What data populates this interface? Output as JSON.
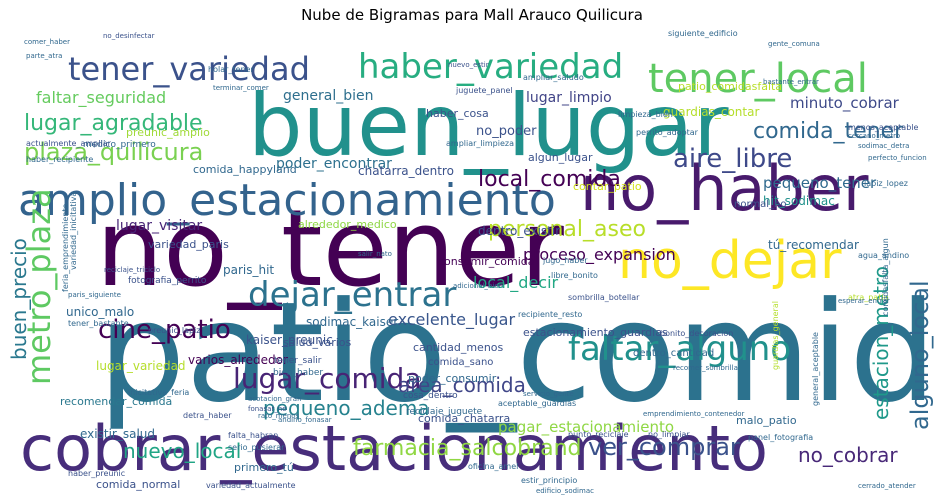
{
  "title": "Nube de Bigramas para Mall Arauco Quilicura",
  "words": [
    {
      "text": "patio_comida",
      "color": "#2c728e"
    },
    {
      "text": "buen_lugar",
      "color": "#21918c"
    },
    {
      "text": "no_tener",
      "color": "#440154"
    },
    {
      "text": "cobrar_estacionamiento",
      "color": "#472d7b"
    },
    {
      "text": "no_haber",
      "color": "#481a6c"
    },
    {
      "text": "no_dejar",
      "color": "#fde725"
    },
    {
      "text": "amplio_estacionamiento",
      "color": "#33638d"
    },
    {
      "text": "tener_local",
      "color": "#5ec962"
    },
    {
      "text": "haber_variedad",
      "color": "#27ad81"
    },
    {
      "text": "tener_variedad",
      "color": "#3b528b"
    },
    {
      "text": "dejar_entrar",
      "color": "#2c728e"
    },
    {
      "text": "faltar_alguno",
      "color": "#21918c"
    },
    {
      "text": "lugar_comida",
      "color": "#482475"
    },
    {
      "text": "metro_plaza",
      "color": "#5ec962"
    },
    {
      "text": "cine_patio",
      "color": "#440154"
    },
    {
      "text": "plaza_quilicura",
      "color": "#7ad151"
    },
    {
      "text": "lugar_agradable",
      "color": "#35b779"
    },
    {
      "text": "aire_libre",
      "color": "#3e4989"
    },
    {
      "text": "comida_tener",
      "color": "#31688e"
    },
    {
      "text": "alguno_local",
      "color": "#31688e"
    },
    {
      "text": "local_comida",
      "color": "#440154"
    },
    {
      "text": "personal_aseo",
      "color": "#b8de29"
    },
    {
      "text": "ver_comprar",
      "color": "#3b528b"
    },
    {
      "text": "farmacia_salcobrand",
      "color": "#90d743"
    },
    {
      "text": "nuevo_local",
      "color": "#21a585"
    },
    {
      "text": "pequeno_adema",
      "color": "#26828e"
    },
    {
      "text": "area_comida",
      "color": "#404688"
    },
    {
      "text": "buen_precio",
      "color": "#2a788e"
    },
    {
      "text": "estacion_metro",
      "color": "#1f998a"
    },
    {
      "text": "no_cobrar",
      "color": "#482878"
    },
    {
      "text": "faltar_seguridad",
      "color": "#65cb5e"
    },
    {
      "text": "proceso_expansion",
      "color": "#440154"
    },
    {
      "text": "local_decir",
      "color": "#22a884"
    },
    {
      "text": "excelente_lugar",
      "color": "#39568c"
    },
    {
      "text": "pagar_estacionamiento",
      "color": "#8fd744"
    },
    {
      "text": "general_bien",
      "color": "#2e6f8e"
    },
    {
      "text": "minuto_cobrar",
      "color": "#3e4a89"
    },
    {
      "text": "pequeno_tener",
      "color": "#306a8e"
    },
    {
      "text": "poder_encontrar",
      "color": "#2d708e"
    },
    {
      "text": "lugar_limpio",
      "color": "#414487"
    },
    {
      "text": "no_poder",
      "color": "#3b528b"
    },
    {
      "text": "lugar_visitar",
      "color": "#482677"
    },
    {
      "text": "paris_hit",
      "color": "#31688e"
    },
    {
      "text": "dentro_existir",
      "color": "#3b528b"
    },
    {
      "text": "sodimac_kaiser",
      "color": "#31688e"
    },
    {
      "text": "kaiser_preunic",
      "color": "#3b528b"
    },
    {
      "text": "varios_alrededor",
      "color": "#440154"
    },
    {
      "text": "comida_happyland",
      "color": "#31688e"
    },
    {
      "text": "chatarra_dentro",
      "color": "#3b528b"
    },
    {
      "text": "preunic_amplio",
      "color": "#a0da39"
    },
    {
      "text": "guardias_contar",
      "color": "#b5de2b"
    },
    {
      "text": "haber_cosa",
      "color": "#3b528b"
    },
    {
      "text": "algun_lugar",
      "color": "#3b528b"
    },
    {
      "text": "contar_patio",
      "color": "#d2e21b"
    },
    {
      "text": "hit_sodimac",
      "color": "#21918c"
    },
    {
      "text": "tú_recomendar",
      "color": "#31688e"
    },
    {
      "text": "unico_malo",
      "color": "#31688e"
    },
    {
      "text": "lugar_variedad",
      "color": "#b5de2b"
    },
    {
      "text": "existir_salud",
      "color": "#31688e"
    },
    {
      "text": "comida_chatarra",
      "color": "#3b528b"
    },
    {
      "text": "recomendar_comida",
      "color": "#2a788e"
    },
    {
      "text": "primero_tú",
      "color": "#31688e"
    },
    {
      "text": "comida_normal",
      "color": "#3b528b"
    },
    {
      "text": "malo_patio",
      "color": "#31688e"
    },
    {
      "text": "variedad_paris",
      "color": "#3b528b"
    },
    {
      "text": "alrededor_medico",
      "color": "#8fd744"
    },
    {
      "text": "consumir_comida",
      "color": "#440154"
    },
    {
      "text": "salud_varios",
      "color": "#3b528b"
    },
    {
      "text": "poder_consumir",
      "color": "#31688e"
    },
    {
      "text": "cantidad_menos",
      "color": "#3b528b"
    },
    {
      "text": "estacionamiento_guardias",
      "color": "#3b528b"
    },
    {
      "text": "patio_comidasfalta",
      "color": "#b8de29"
    },
    {
      "text": "medico_primero",
      "color": "#31688e"
    },
    {
      "text": "comida_sano",
      "color": "#3b528b"
    },
    {
      "text": "bien_haber",
      "color": "#31688e"
    },
    {
      "text": "cosa_dentro",
      "color": "#3b528b"
    },
    {
      "text": "normal_no",
      "color": "#3b528b"
    },
    {
      "text": "dentro_cantidad",
      "color": "#31688e"
    },
    {
      "text": "fotografia_perrito",
      "color": "#3b528b"
    },
    {
      "text": "reciclaje_juguete",
      "color": "#31688e"
    },
    {
      "text": "tener_salir",
      "color": "#3b528b"
    },
    {
      "text": "comer_haber",
      "color": "#31688e"
    },
    {
      "text": "no_desinfectar",
      "color": "#3b528b"
    },
    {
      "text": "holar_tener",
      "color": "#31688e"
    },
    {
      "text": "parte_atra",
      "color": "#31688e"
    },
    {
      "text": "nuevo_estir",
      "color": "#3b528b"
    },
    {
      "text": "ampliar_saludo",
      "color": "#31688e"
    },
    {
      "text": "juguete_panel",
      "color": "#3b528b"
    },
    {
      "text": "siguiente_edificio",
      "color": "#31688e"
    },
    {
      "text": "bastante_entrar",
      "color": "#31688e"
    },
    {
      "text": "limpieza_bien",
      "color": "#31688e"
    },
    {
      "text": "ampliar_limpieza",
      "color": "#31688e"
    },
    {
      "text": "perrito_adoptar",
      "color": "#31688e"
    },
    {
      "text": "menos_aceptable",
      "color": "#3b528b"
    },
    {
      "text": "cercano_metro",
      "color": "#31688e"
    },
    {
      "text": "actualmente_ampliar",
      "color": "#3b528b"
    },
    {
      "text": "haber_recipiente",
      "color": "#31688e"
    },
    {
      "text": "terminar_comer",
      "color": "#31688e"
    },
    {
      "text": "gente_comuna",
      "color": "#31688e"
    },
    {
      "text": "reciclaje_triciclo",
      "color": "#3b528b"
    },
    {
      "text": "paris_siguiente",
      "color": "#31688e"
    },
    {
      "text": "tener_bastante",
      "color": "#31688e"
    },
    {
      "text": "preunic_lapiz",
      "color": "#3b528b"
    },
    {
      "text": "salir_nato",
      "color": "#31688e"
    },
    {
      "text": "libre_bonito",
      "color": "#31688e"
    },
    {
      "text": "jugo_haber",
      "color": "#31688e"
    },
    {
      "text": "sombrilla_botellar",
      "color": "#3b528b"
    },
    {
      "text": "recipiente_resto",
      "color": "#31688e"
    },
    {
      "text": "acotacion_gran",
      "color": "#31688e"
    },
    {
      "text": "fonasar_no",
      "color": "#3b528b"
    },
    {
      "text": "andino_fonasar",
      "color": "#31688e"
    },
    {
      "text": "detra_haber",
      "color": "#3b528b"
    },
    {
      "text": "oficina_amel",
      "color": "#31688e"
    },
    {
      "text": "punto_reciclaje",
      "color": "#3b528b"
    },
    {
      "text": "aceptable_guardias",
      "color": "#31688e"
    },
    {
      "text": "no_limpiar",
      "color": "#3b528b"
    },
    {
      "text": "panel_fotografia",
      "color": "#31688e"
    },
    {
      "text": "haber_preunic",
      "color": "#3b528b"
    },
    {
      "text": "inicitativa_feria",
      "color": "#31688e"
    },
    {
      "text": "falta_habran",
      "color": "#3b528b"
    },
    {
      "text": "serio_pusierar",
      "color": "#31688e"
    },
    {
      "text": "variedad_actualmente",
      "color": "#3b528b"
    },
    {
      "text": "estir_principio",
      "color": "#31688e"
    },
    {
      "text": "edificio_sodimac",
      "color": "#31688e"
    },
    {
      "text": "cerrado_atender",
      "color": "#31688e"
    },
    {
      "text": "bonito_decoracion",
      "color": "#3b528b"
    },
    {
      "text": "recomer_sombrilla",
      "color": "#31688e"
    },
    {
      "text": "agua_andino",
      "color": "#31688e"
    },
    {
      "text": "atra_patio",
      "color": "#b5de2b"
    },
    {
      "text": "lapiz_lopez",
      "color": "#31688e"
    },
    {
      "text": "sodimac_detra",
      "color": "#31688e"
    },
    {
      "text": "perfecto_funcion",
      "color": "#31688e"
    },
    {
      "text": "comidasfalta_algun",
      "color": "#31688e"
    },
    {
      "text": "esperar_entrar",
      "color": "#31688e"
    },
    {
      "text": "general_aceptable",
      "color": "#31688e"
    },
    {
      "text": "guardias_general",
      "color": "#b5de2b"
    },
    {
      "text": "emprendimiento_contenedor",
      "color": "#31688e"
    },
    {
      "text": "servicio_gente",
      "color": "#31688e"
    },
    {
      "text": "feria_emprendimiento",
      "color": "#31688e"
    },
    {
      "text": "rato_menos",
      "color": "#31688e"
    },
    {
      "text": "variedad_inicitativa",
      "color": "#31688e"
    },
    {
      "text": "adicional_bien",
      "color": "#31688e"
    }
  ]
}
